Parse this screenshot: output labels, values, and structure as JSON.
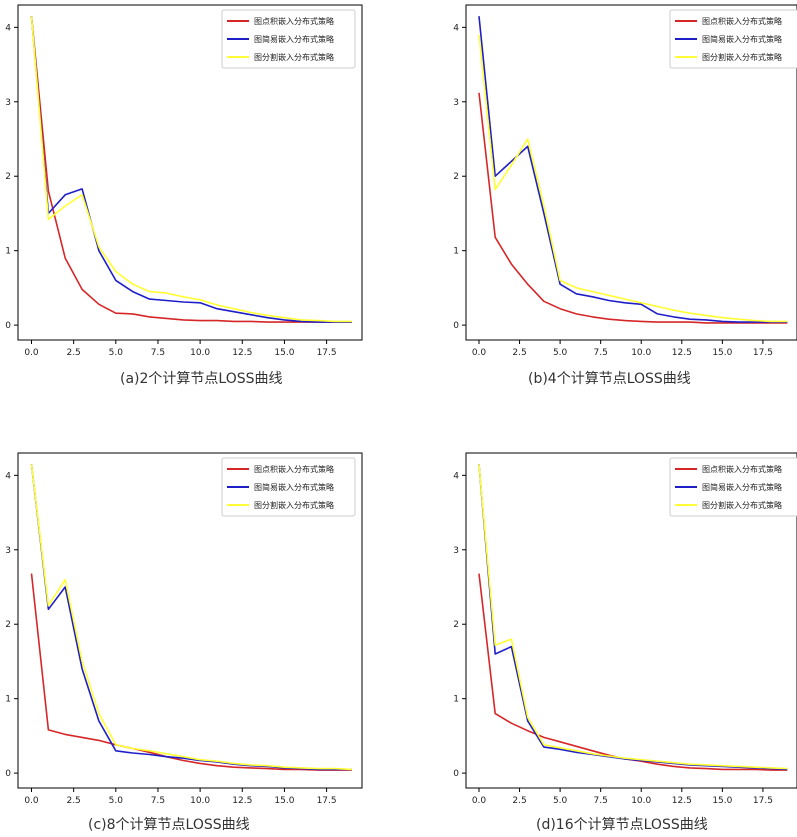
{
  "chart_data": [
    {
      "type": "line",
      "caption": "(a)2个计算节点LOSS曲线",
      "x": [
        0,
        1,
        2,
        3,
        4,
        5,
        6,
        7,
        8,
        9,
        10,
        11,
        12,
        13,
        14,
        15,
        16,
        17,
        18,
        19
      ],
      "xticks": [
        0.0,
        2.5,
        5.0,
        7.5,
        10.0,
        12.5,
        15.0,
        17.5
      ],
      "yticks": [
        0,
        1,
        2,
        3,
        4
      ],
      "xlim": [
        -0.8,
        19.6
      ],
      "ylim": [
        -0.2,
        4.3
      ],
      "legend_position": "top-right",
      "series": [
        {
          "name": "图点积嵌入分布式策略",
          "color": "#d62728",
          "values": [
            4.15,
            1.8,
            0.9,
            0.48,
            0.28,
            0.16,
            0.15,
            0.11,
            0.09,
            0.07,
            0.06,
            0.06,
            0.05,
            0.05,
            0.04,
            0.04,
            0.04,
            0.04,
            0.04,
            0.04
          ]
        },
        {
          "name": "图简易嵌入分布式策略",
          "color": "#1f1fc8",
          "values": [
            4.15,
            1.5,
            1.75,
            1.83,
            1.0,
            0.6,
            0.45,
            0.35,
            0.33,
            0.31,
            0.3,
            0.22,
            0.18,
            0.14,
            0.1,
            0.07,
            0.05,
            0.04,
            0.04,
            0.04
          ]
        },
        {
          "name": "图分割嵌入分布式策略",
          "color": "#ffff33",
          "values": [
            4.15,
            1.42,
            1.6,
            1.75,
            1.05,
            0.72,
            0.55,
            0.45,
            0.43,
            0.38,
            0.34,
            0.27,
            0.22,
            0.17,
            0.13,
            0.1,
            0.07,
            0.06,
            0.05,
            0.05
          ]
        }
      ]
    },
    {
      "type": "line",
      "caption": "(b)4个计算节点LOSS曲线",
      "x": [
        0,
        1,
        2,
        3,
        4,
        5,
        6,
        7,
        8,
        9,
        10,
        11,
        12,
        13,
        14,
        15,
        16,
        17,
        18,
        19
      ],
      "xticks": [
        0.0,
        2.5,
        5.0,
        7.5,
        10.0,
        12.5,
        15.0,
        17.5
      ],
      "yticks": [
        0,
        1,
        2,
        3,
        4
      ],
      "xlim": [
        -0.8,
        19.6
      ],
      "ylim": [
        -0.2,
        4.3
      ],
      "legend_position": "top-right",
      "series": [
        {
          "name": "图点积嵌入分布式策略",
          "color": "#d62728",
          "values": [
            3.12,
            1.18,
            0.82,
            0.55,
            0.32,
            0.22,
            0.15,
            0.11,
            0.08,
            0.06,
            0.05,
            0.04,
            0.04,
            0.04,
            0.03,
            0.03,
            0.03,
            0.03,
            0.03,
            0.03
          ]
        },
        {
          "name": "图简易嵌入分布式策略",
          "color": "#1f1fc8",
          "values": [
            4.15,
            2.0,
            2.2,
            2.4,
            1.5,
            0.55,
            0.42,
            0.38,
            0.33,
            0.3,
            0.28,
            0.15,
            0.11,
            0.08,
            0.07,
            0.05,
            0.04,
            0.04,
            0.04,
            0.04
          ]
        },
        {
          "name": "图分割嵌入分布式策略",
          "color": "#ffff33",
          "values": [
            3.9,
            1.82,
            2.15,
            2.5,
            1.6,
            0.6,
            0.5,
            0.45,
            0.4,
            0.35,
            0.3,
            0.25,
            0.2,
            0.16,
            0.13,
            0.1,
            0.08,
            0.06,
            0.05,
            0.05
          ]
        }
      ]
    },
    {
      "type": "line",
      "caption": "(c)8个计算节点LOSS曲线",
      "x": [
        0,
        1,
        2,
        3,
        4,
        5,
        6,
        7,
        8,
        9,
        10,
        11,
        12,
        13,
        14,
        15,
        16,
        17,
        18,
        19
      ],
      "xticks": [
        0.0,
        2.5,
        5.0,
        7.5,
        10.0,
        12.5,
        15.0,
        17.5
      ],
      "yticks": [
        0,
        1,
        2,
        3,
        4
      ],
      "xlim": [
        -0.8,
        19.6
      ],
      "ylim": [
        -0.2,
        4.3
      ],
      "legend_position": "top-right",
      "series": [
        {
          "name": "图点积嵌入分布式策略",
          "color": "#d62728",
          "values": [
            2.68,
            0.58,
            0.52,
            0.48,
            0.44,
            0.38,
            0.33,
            0.28,
            0.22,
            0.17,
            0.13,
            0.1,
            0.08,
            0.07,
            0.06,
            0.05,
            0.05,
            0.04,
            0.04,
            0.04
          ]
        },
        {
          "name": "图简易嵌入分布式策略",
          "color": "#1f1fc8",
          "values": [
            4.15,
            2.2,
            2.5,
            1.4,
            0.7,
            0.3,
            0.27,
            0.25,
            0.22,
            0.2,
            0.17,
            0.15,
            0.12,
            0.1,
            0.09,
            0.07,
            0.06,
            0.05,
            0.05,
            0.05
          ]
        },
        {
          "name": "图分割嵌入分布式策略",
          "color": "#ffff33",
          "values": [
            4.15,
            2.25,
            2.6,
            1.5,
            0.8,
            0.38,
            0.33,
            0.3,
            0.26,
            0.22,
            0.18,
            0.16,
            0.13,
            0.11,
            0.1,
            0.08,
            0.07,
            0.06,
            0.06,
            0.05
          ]
        }
      ]
    },
    {
      "type": "line",
      "caption": "(d)16个计算节点LOSS曲线",
      "x": [
        0,
        1,
        2,
        3,
        4,
        5,
        6,
        7,
        8,
        9,
        10,
        11,
        12,
        13,
        14,
        15,
        16,
        17,
        18,
        19
      ],
      "xticks": [
        0.0,
        2.5,
        5.0,
        7.5,
        10.0,
        12.5,
        15.0,
        17.5
      ],
      "yticks": [
        0,
        1,
        2,
        3,
        4
      ],
      "xlim": [
        -0.8,
        19.6
      ],
      "ylim": [
        -0.2,
        4.3
      ],
      "legend_position": "top-right",
      "series": [
        {
          "name": "图点积嵌入分布式策略",
          "color": "#d62728",
          "values": [
            2.68,
            0.8,
            0.67,
            0.57,
            0.48,
            0.42,
            0.36,
            0.3,
            0.24,
            0.19,
            0.16,
            0.12,
            0.09,
            0.07,
            0.06,
            0.05,
            0.05,
            0.05,
            0.04,
            0.04
          ]
        },
        {
          "name": "图简易嵌入分布式策略",
          "color": "#1f1fc8",
          "values": [
            4.15,
            1.6,
            1.7,
            0.7,
            0.35,
            0.32,
            0.28,
            0.25,
            0.22,
            0.19,
            0.17,
            0.15,
            0.13,
            0.11,
            0.1,
            0.09,
            0.08,
            0.07,
            0.06,
            0.05
          ]
        },
        {
          "name": "图分割嵌入分布式策略",
          "color": "#ffff33",
          "values": [
            4.15,
            1.72,
            1.8,
            0.75,
            0.38,
            0.34,
            0.3,
            0.26,
            0.23,
            0.2,
            0.18,
            0.16,
            0.14,
            0.12,
            0.11,
            0.1,
            0.09,
            0.08,
            0.07,
            0.06
          ]
        }
      ]
    }
  ]
}
